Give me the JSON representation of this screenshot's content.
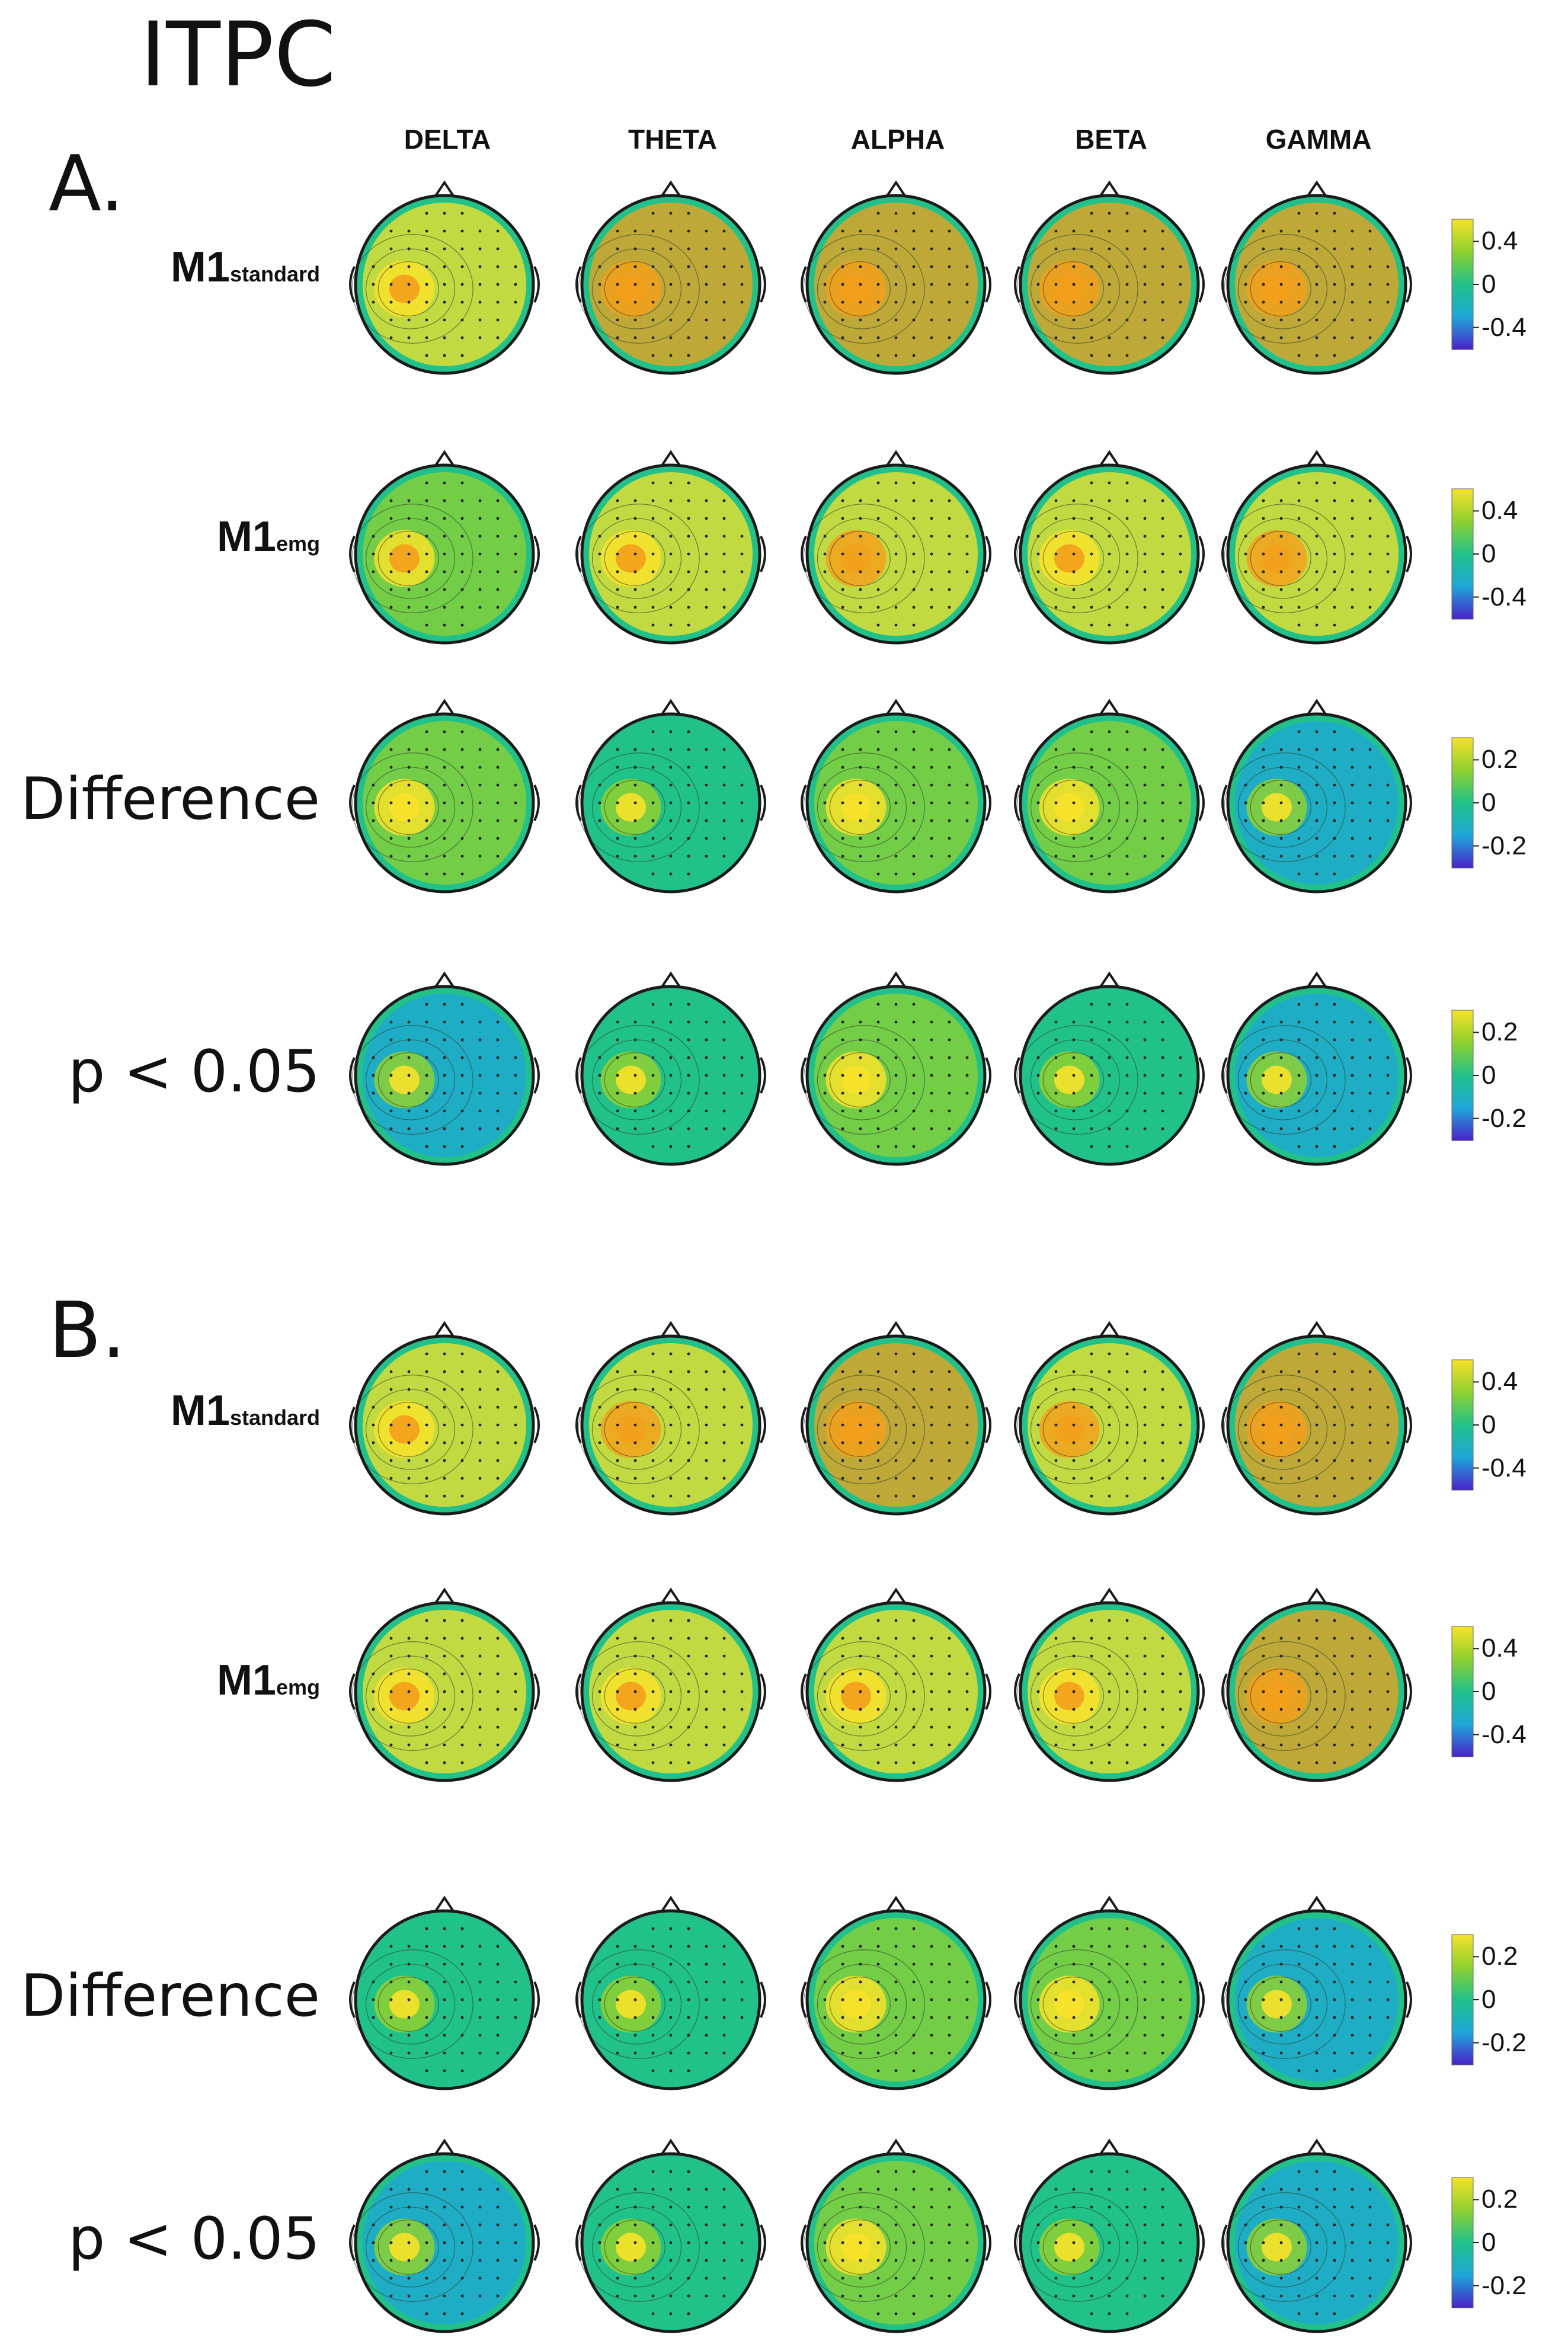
{
  "title": "ITPC",
  "bands": [
    "DELTA",
    "THETA",
    "ALPHA",
    "BETA",
    "GAMMA"
  ],
  "colors": {
    "low": "#4a22c8",
    "midlow": "#1fa6d8",
    "zero": "#22c18a",
    "midhigh": "#8fd030",
    "high": "#f7e22a",
    "peak": "#f3a01c",
    "outline": "#1a1a1a"
  },
  "panels": [
    {
      "letter": "A.",
      "rows": [
        {
          "label_main": "M1",
          "label_sub": "standard",
          "style": "m1",
          "colorbar": {
            "ticks": [
              "0.4",
              "0",
              "-0.4"
            ]
          },
          "levels": [
            0.12,
            0.25,
            0.33,
            0.28,
            0.28
          ]
        },
        {
          "label_main": "M1",
          "label_sub": "emg",
          "style": "m1",
          "colorbar": {
            "ticks": [
              "0.4",
              "0",
              "-0.4"
            ]
          },
          "levels": [
            0.08,
            0.15,
            0.18,
            0.15,
            0.2
          ]
        },
        {
          "label_main": "Difference",
          "label_sub": "",
          "style": "big",
          "colorbar": {
            "ticks": [
              "0.2",
              "0",
              "-0.2"
            ]
          },
          "levels": [
            0.02,
            0.0,
            0.06,
            0.05,
            -0.04
          ]
        },
        {
          "label_main": "p < 0.05",
          "label_sub": "",
          "style": "big",
          "colorbar": {
            "ticks": [
              "0.2",
              "0",
              "-0.2"
            ]
          },
          "levels": [
            -0.04,
            -0.02,
            0.02,
            0.01,
            -0.06
          ]
        }
      ]
    },
    {
      "letter": "B.",
      "rows": [
        {
          "label_main": "M1",
          "label_sub": "standard",
          "style": "m1",
          "colorbar": {
            "ticks": [
              "0.4",
              "0",
              "-0.4"
            ]
          },
          "levels": [
            0.12,
            0.22,
            0.25,
            0.22,
            0.28
          ]
        },
        {
          "label_main": "M1",
          "label_sub": "emg",
          "style": "m1",
          "colorbar": {
            "ticks": [
              "0.4",
              "0",
              "-0.4"
            ]
          },
          "levels": [
            0.1,
            0.1,
            0.1,
            0.15,
            0.25
          ]
        },
        {
          "label_main": "Difference",
          "label_sub": "",
          "style": "big",
          "colorbar": {
            "ticks": [
              "0.2",
              "0",
              "-0.2"
            ]
          },
          "levels": [
            -0.02,
            0.0,
            0.04,
            0.02,
            -0.06
          ]
        },
        {
          "label_main": "p < 0.05",
          "label_sub": "",
          "style": "big",
          "colorbar": {
            "ticks": [
              "0.2",
              "0",
              "-0.2"
            ]
          },
          "levels": [
            -0.06,
            0.0,
            0.03,
            0.0,
            -0.06
          ]
        }
      ]
    }
  ]
}
